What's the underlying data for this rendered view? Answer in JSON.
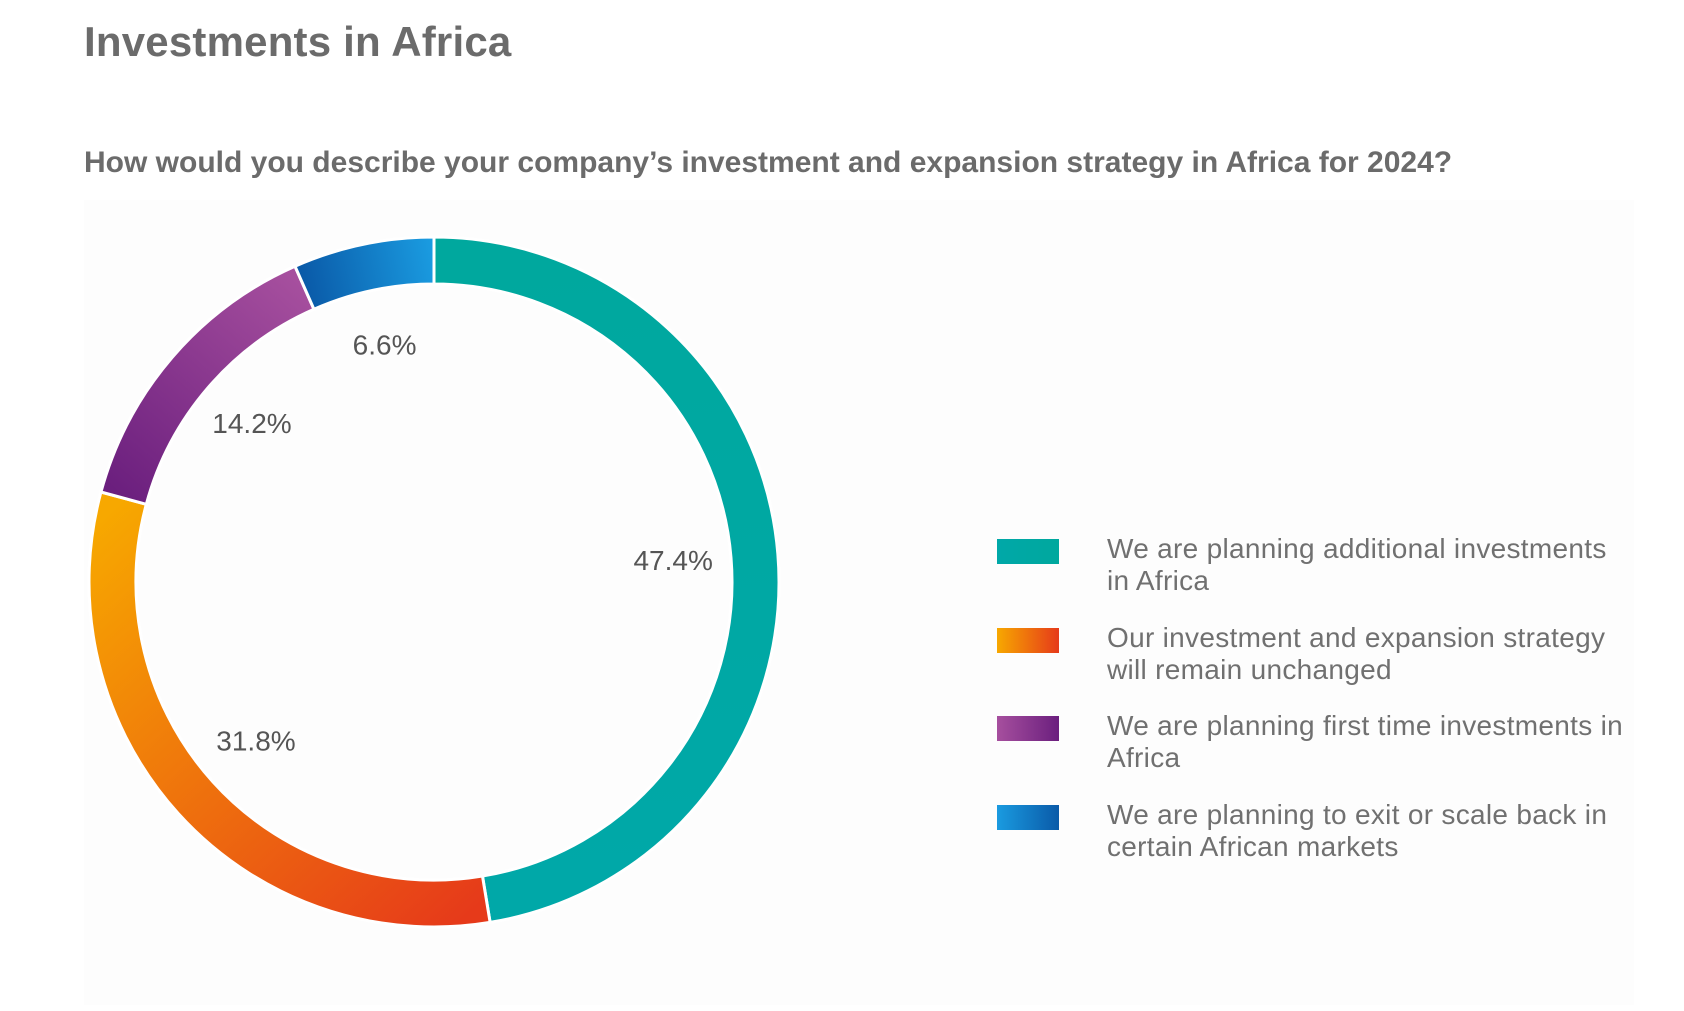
{
  "page": {
    "title": "Investments in Africa",
    "question": "How would you describe your company’s investment and expansion strategy in Africa for 2024?"
  },
  "chart_data": {
    "type": "pie",
    "subtype": "donut",
    "title": "How would you describe your company’s investment and expansion strategy in Africa for 2024?",
    "unit": "%",
    "legend_position": "right",
    "slices": [
      {
        "label": "We are planning additional investments in Africa",
        "value": 47.4,
        "value_label": "47.4%",
        "color": "#00a8a8",
        "color_end": "#00a89e"
      },
      {
        "label": "Our investment and expansion strategy will remain unchanged",
        "value": 31.8,
        "value_label": "31.8%",
        "color": "#f7a800",
        "color_end": "#e63a1a"
      },
      {
        "label": "We are planning first time investments in Africa",
        "value": 14.2,
        "value_label": "14.2%",
        "color": "#a64f9e",
        "color_end": "#6b1f7e"
      },
      {
        "label": "We are planning to exit or scale back in certain African markets",
        "value": 6.6,
        "value_label": "6.6%",
        "color": "#1a9be0",
        "color_end": "#0a5aa8"
      }
    ]
  }
}
